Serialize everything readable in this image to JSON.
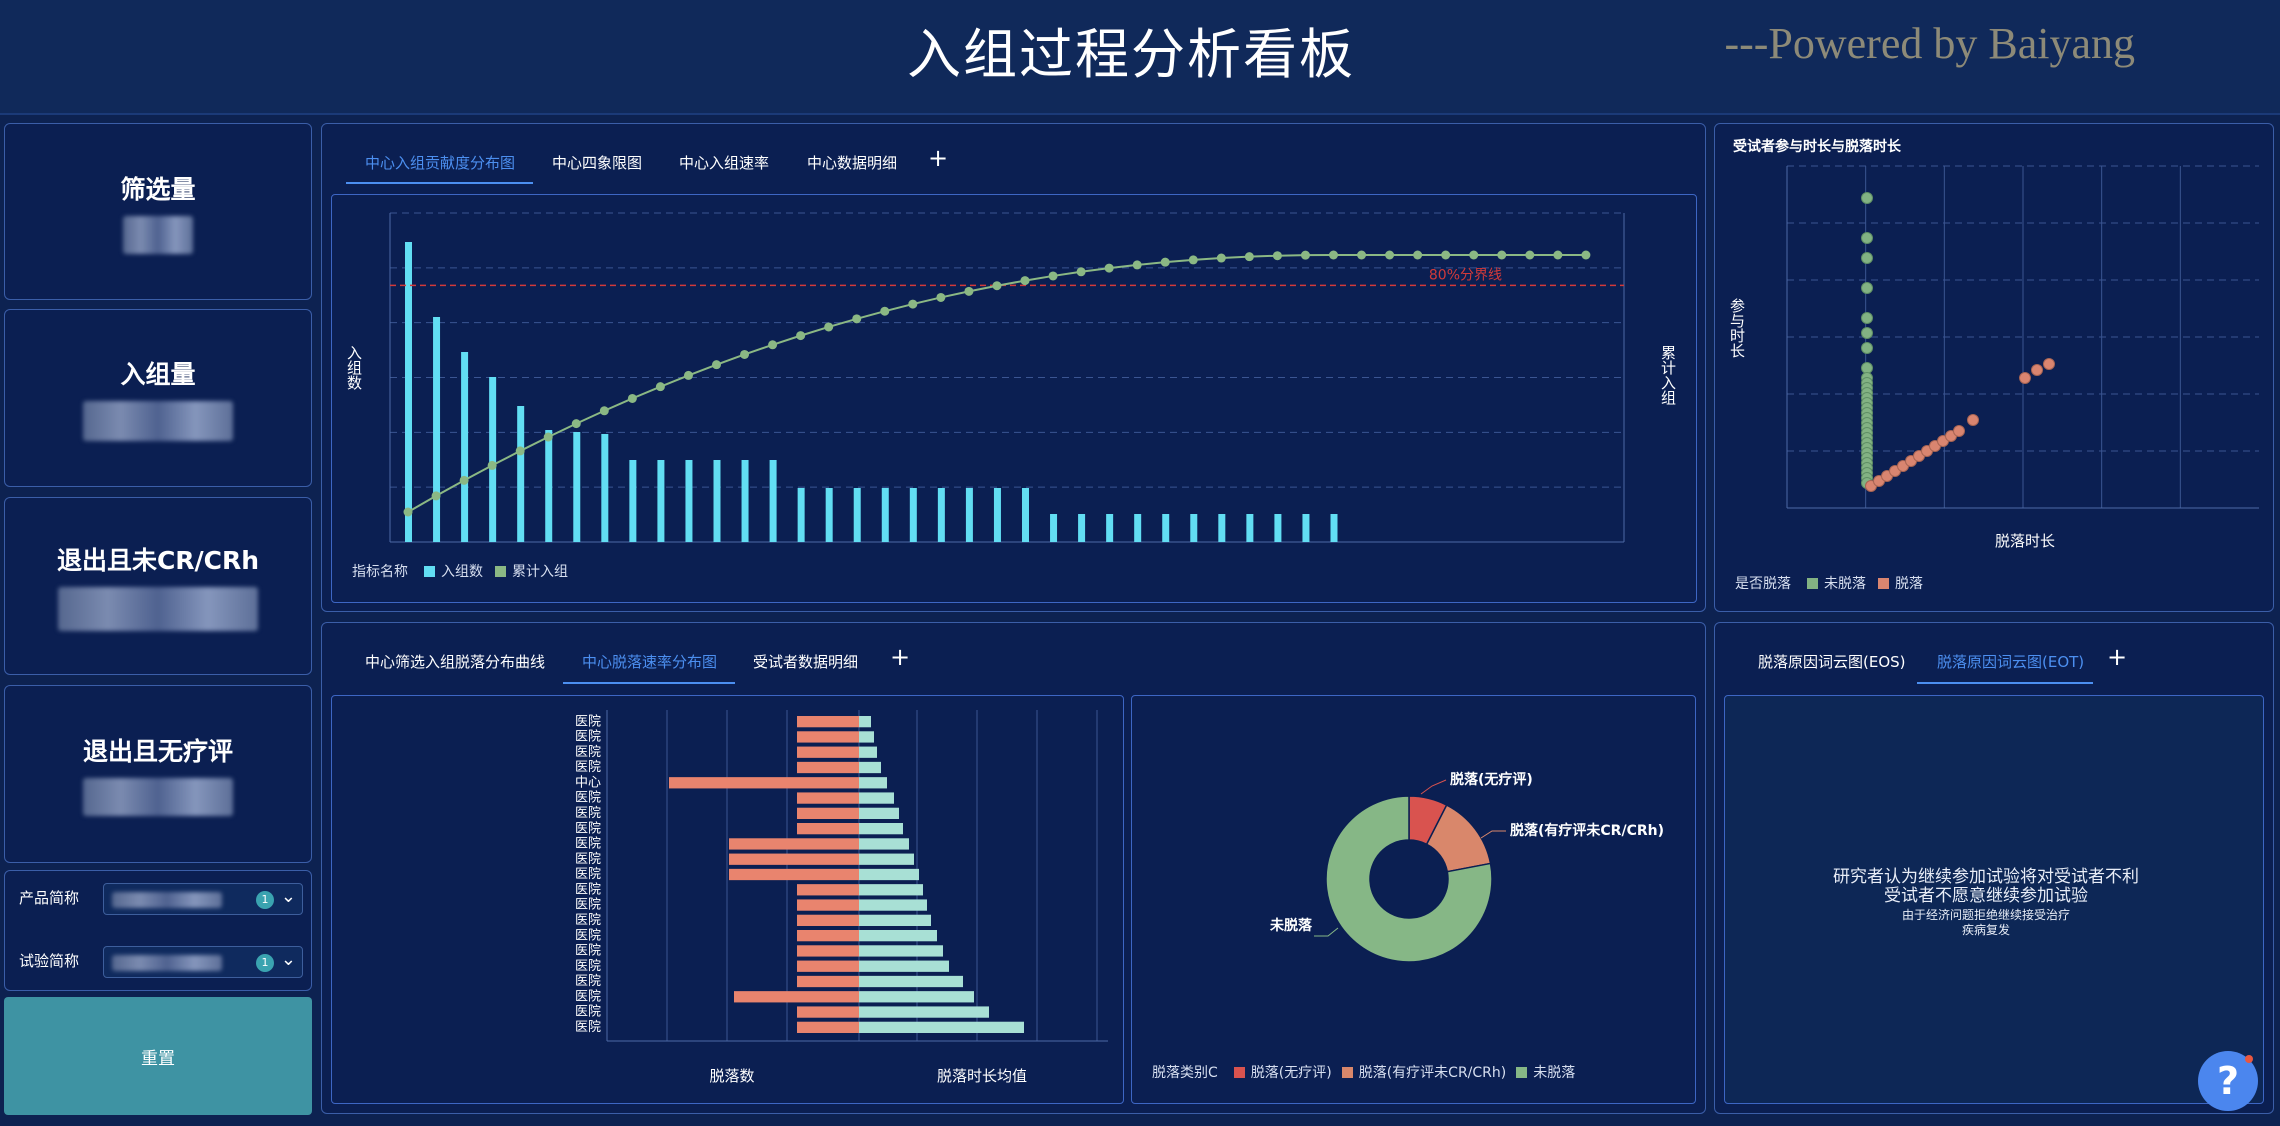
{
  "header": {
    "title": "入组过程分析看板",
    "powered": "---Powered by Baiyang"
  },
  "kpis": [
    {
      "label": "筛选量"
    },
    {
      "label": "入组量"
    },
    {
      "label": "退出且未CR/CRh"
    },
    {
      "label": "退出且无疗评"
    }
  ],
  "filters": [
    {
      "label": "产品简称",
      "count": "1"
    },
    {
      "label": "试验简称",
      "count": "1"
    }
  ],
  "reset_label": "重置",
  "top_tabs": [
    {
      "label": "中心入组贡献度分布图",
      "active": true
    },
    {
      "label": "中心四象限图",
      "active": false
    },
    {
      "label": "中心入组速率",
      "active": false
    },
    {
      "label": "中心数据明细",
      "active": false
    }
  ],
  "pareto": {
    "ylabel_left": "入组数",
    "ylabel_right": "累计入组",
    "threshold_label": "80%分界线",
    "legend_title": "指标名称",
    "legend": [
      "入组数",
      "累计入组"
    ],
    "colors": {
      "bar": "#62def3",
      "line": "#8bb884",
      "threshold": "#d23a3a"
    }
  },
  "scatter_panel": {
    "title": "受试者参与时长与脱落时长",
    "ylabel": "参与时长",
    "xlabel": "脱落时长",
    "legend_title": "是否脱落",
    "legend": [
      "未脱落",
      "脱落"
    ],
    "colors": {
      "not_dropped": "#82b283",
      "dropped": "#d98570"
    }
  },
  "bottom_tabs": [
    {
      "label": "中心筛选入组脱落分布曲线",
      "active": false
    },
    {
      "label": "中心脱落速率分布图",
      "active": true
    },
    {
      "label": "受试者数据明细",
      "active": false
    }
  ],
  "butterfly": {
    "row_labels": [
      "医院",
      "医院",
      "医院",
      "医院",
      "中心",
      "医院",
      "医院",
      "医院",
      "医院",
      "医院",
      "医院",
      "医院",
      "医院",
      "医院",
      "医院",
      "医院",
      "医院",
      "医院",
      "医院",
      "医院",
      "医院"
    ],
    "xlabel_left": "脱落数",
    "xlabel_right": "脱落时长均值",
    "colors": {
      "left": "#e9846e",
      "right": "#a8e0d5"
    }
  },
  "donut": {
    "labels": [
      "脱落(无疗评)",
      "脱落(有疗评未CR/CRh)",
      "未脱落"
    ],
    "legend_title": "脱落类别C",
    "colors": [
      "#d9534f",
      "#d9876b",
      "#86b786"
    ]
  },
  "wordcloud_tabs": [
    {
      "label": "脱落原因词云图(EOS)",
      "active": false
    },
    {
      "label": "脱落原因词云图(EOT)",
      "active": true
    }
  ],
  "wordcloud": {
    "words": [
      "研究者认为继续参加试验将对受试者不利",
      "受试者不愿意继续参加试验",
      "由于经济问题拒绝继续接受治疗",
      "疾病复发"
    ]
  },
  "help_icon": "?"
}
